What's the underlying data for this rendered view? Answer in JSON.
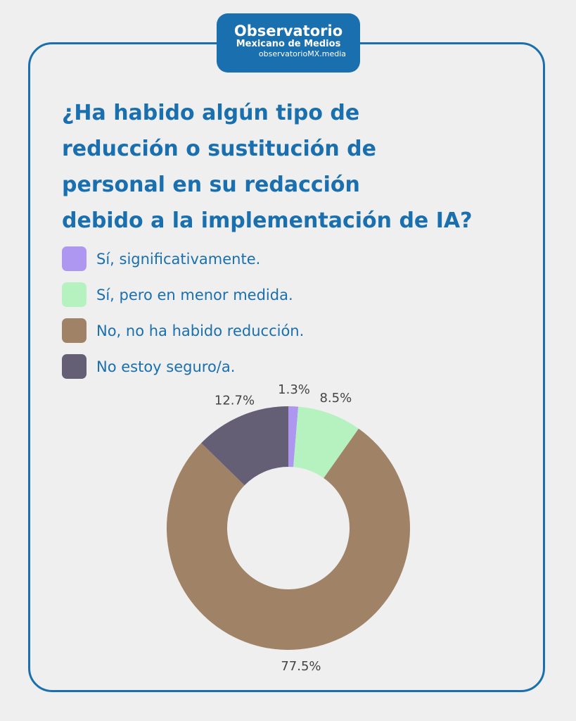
{
  "logo": {
    "line1": "Observatorio",
    "line2": "Mexicano de Medios",
    "line3": "observatorioMX.media"
  },
  "chart_data": {
    "type": "pie",
    "title": "¿Ha habido algún tipo de reducción o sustitución de personal en su redacción debido a la implementación de IA?",
    "title_lines": [
      "¿Ha habido algún tipo de",
      "reducción o sustitución de",
      "personal en su redacción",
      "debido a la implementación de IA?"
    ],
    "donut": true,
    "categories": [
      "Sí, significativamente.",
      "Sí, pero en menor medida.",
      "No, no ha habido reducción.",
      "No estoy seguro/a."
    ],
    "values": [
      1.3,
      8.5,
      77.5,
      12.7
    ],
    "labels": [
      "1.3%",
      "8.5%",
      "77.5%",
      "12.7%"
    ],
    "colors": [
      "#ae97f0",
      "#b5f2c0",
      "#a08367",
      "#655f76"
    ],
    "legend_placement": "top-left"
  }
}
